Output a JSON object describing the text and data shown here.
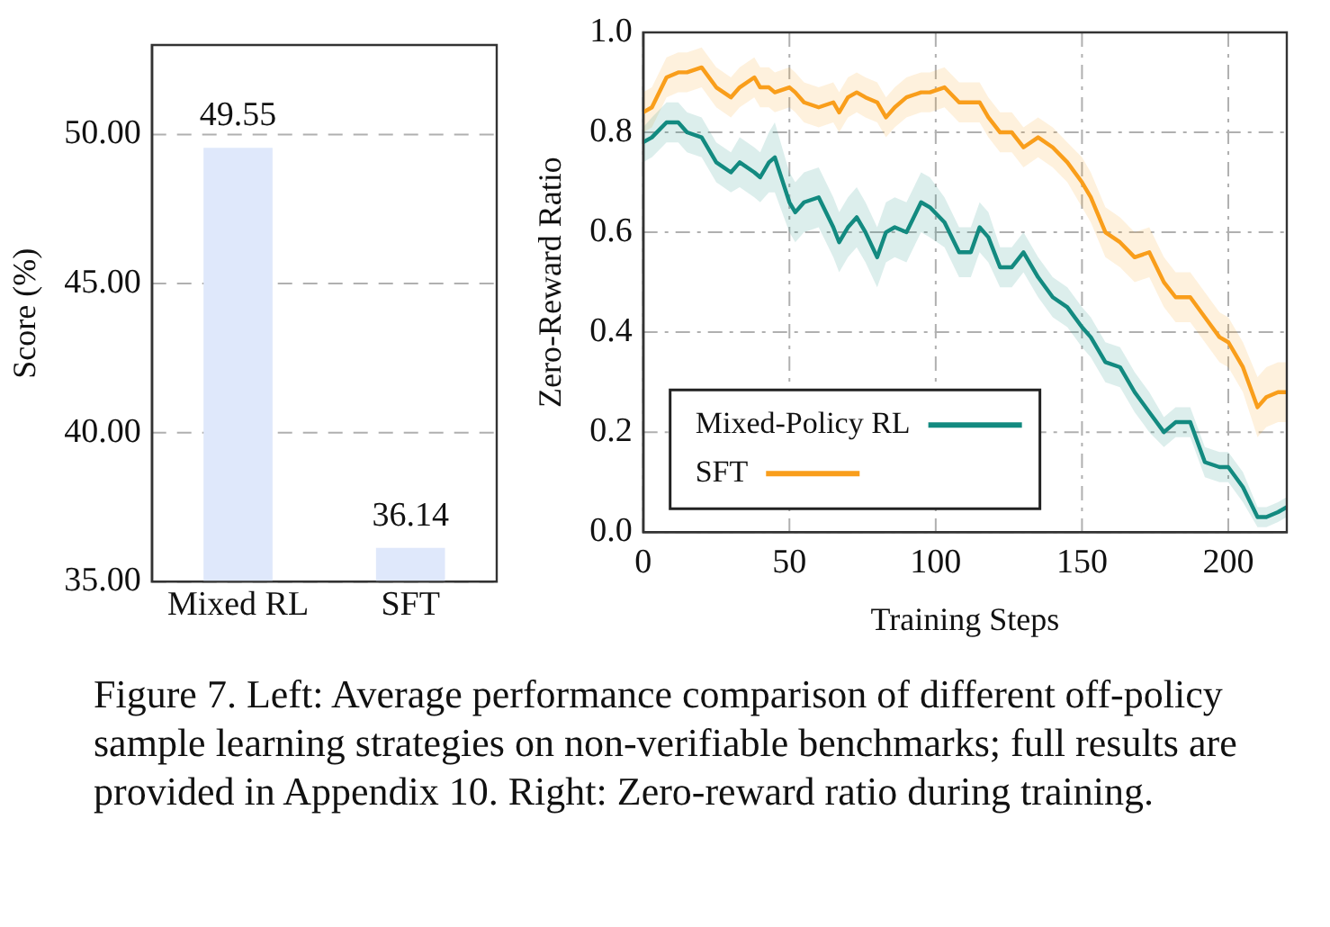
{
  "chart_data": [
    {
      "type": "bar",
      "ylabel": "Score (%)",
      "categories": [
        "Mixed RL",
        "SFT"
      ],
      "values": [
        49.55,
        36.14
      ],
      "color": "#dfe8fb",
      "data_labels": true,
      "ylim": [
        35,
        53
      ],
      "yticks": [
        {
          "value": 35,
          "label": "35.00"
        },
        {
          "value": 40,
          "label": "40.00"
        },
        {
          "value": 45,
          "label": "45.00"
        },
        {
          "value": 50,
          "label": "50.00"
        }
      ],
      "grid": "y"
    },
    {
      "type": "line",
      "xlabel": "Training Steps",
      "ylabel": "Zero-Reward Ratio",
      "xlim": [
        0,
        220
      ],
      "ylim": [
        0,
        1
      ],
      "xticks": [
        0,
        50,
        100,
        150,
        200
      ],
      "yticks": [
        {
          "value": 0,
          "label": "0.0"
        },
        {
          "value": 0.2,
          "label": "0.2"
        },
        {
          "value": 0.4,
          "label": "0.4"
        },
        {
          "value": 0.6,
          "label": "0.6"
        },
        {
          "value": 0.8,
          "label": "0.8"
        },
        {
          "value": 1,
          "label": "1.0"
        }
      ],
      "grid": true,
      "legend": "bottom left",
      "line_style": "solid",
      "marker": "none",
      "x": [
        0,
        3,
        8,
        12,
        15,
        20,
        25,
        30,
        33,
        38,
        40,
        43,
        45,
        50,
        52,
        55,
        60,
        65,
        67,
        70,
        73,
        76,
        80,
        83,
        86,
        90,
        95,
        98,
        103,
        108,
        112,
        115,
        118,
        122,
        126,
        130,
        135,
        140,
        145,
        150,
        153,
        158,
        163,
        168,
        173,
        178,
        182,
        187,
        192,
        197,
        200,
        205,
        210,
        213,
        217,
        220
      ],
      "series": [
        {
          "name": "Mixed-Policy RL",
          "color": "#138a80",
          "values": [
            0.78,
            0.79,
            0.82,
            0.82,
            0.8,
            0.79,
            0.74,
            0.72,
            0.74,
            0.72,
            0.71,
            0.74,
            0.75,
            0.66,
            0.64,
            0.66,
            0.67,
            0.61,
            0.58,
            0.61,
            0.63,
            0.6,
            0.55,
            0.6,
            0.61,
            0.6,
            0.66,
            0.65,
            0.62,
            0.56,
            0.56,
            0.61,
            0.59,
            0.53,
            0.53,
            0.56,
            0.51,
            0.47,
            0.45,
            0.41,
            0.39,
            0.34,
            0.33,
            0.28,
            0.24,
            0.2,
            0.22,
            0.22,
            0.14,
            0.13,
            0.13,
            0.09,
            0.03,
            0.03,
            0.04,
            0.05
          ],
          "lower": [
            0.74,
            0.75,
            0.78,
            0.78,
            0.76,
            0.75,
            0.7,
            0.68,
            0.69,
            0.67,
            0.66,
            0.68,
            0.68,
            0.6,
            0.58,
            0.6,
            0.61,
            0.55,
            0.52,
            0.55,
            0.57,
            0.54,
            0.49,
            0.54,
            0.55,
            0.54,
            0.6,
            0.59,
            0.57,
            0.51,
            0.51,
            0.56,
            0.54,
            0.49,
            0.49,
            0.52,
            0.47,
            0.43,
            0.41,
            0.37,
            0.35,
            0.3,
            0.29,
            0.24,
            0.2,
            0.17,
            0.19,
            0.19,
            0.11,
            0.1,
            0.1,
            0.06,
            0.01,
            0.01,
            0.02,
            0.03
          ],
          "upper": [
            0.81,
            0.83,
            0.86,
            0.86,
            0.84,
            0.83,
            0.78,
            0.76,
            0.79,
            0.77,
            0.76,
            0.8,
            0.82,
            0.72,
            0.7,
            0.72,
            0.73,
            0.67,
            0.64,
            0.67,
            0.69,
            0.66,
            0.61,
            0.66,
            0.67,
            0.66,
            0.72,
            0.71,
            0.67,
            0.61,
            0.61,
            0.66,
            0.64,
            0.57,
            0.57,
            0.6,
            0.55,
            0.51,
            0.49,
            0.45,
            0.43,
            0.38,
            0.37,
            0.32,
            0.28,
            0.23,
            0.25,
            0.25,
            0.17,
            0.16,
            0.16,
            0.12,
            0.05,
            0.05,
            0.06,
            0.07
          ]
        },
        {
          "name": "SFT",
          "color": "#f99e1c",
          "values": [
            0.84,
            0.85,
            0.91,
            0.92,
            0.92,
            0.93,
            0.89,
            0.87,
            0.89,
            0.91,
            0.89,
            0.89,
            0.88,
            0.89,
            0.88,
            0.86,
            0.85,
            0.86,
            0.84,
            0.87,
            0.88,
            0.87,
            0.86,
            0.83,
            0.85,
            0.87,
            0.88,
            0.88,
            0.89,
            0.86,
            0.86,
            0.86,
            0.83,
            0.8,
            0.8,
            0.77,
            0.79,
            0.77,
            0.74,
            0.7,
            0.67,
            0.6,
            0.58,
            0.55,
            0.56,
            0.5,
            0.47,
            0.47,
            0.43,
            0.39,
            0.38,
            0.33,
            0.25,
            0.27,
            0.28,
            0.28
          ],
          "lower": [
            0.8,
            0.81,
            0.87,
            0.88,
            0.88,
            0.89,
            0.85,
            0.83,
            0.85,
            0.87,
            0.85,
            0.85,
            0.84,
            0.85,
            0.84,
            0.82,
            0.81,
            0.82,
            0.8,
            0.83,
            0.84,
            0.83,
            0.82,
            0.79,
            0.81,
            0.83,
            0.84,
            0.84,
            0.85,
            0.82,
            0.82,
            0.82,
            0.79,
            0.76,
            0.76,
            0.73,
            0.75,
            0.73,
            0.7,
            0.65,
            0.62,
            0.55,
            0.53,
            0.5,
            0.51,
            0.45,
            0.42,
            0.42,
            0.38,
            0.34,
            0.33,
            0.28,
            0.19,
            0.21,
            0.22,
            0.22
          ],
          "upper": [
            0.88,
            0.89,
            0.95,
            0.96,
            0.96,
            0.97,
            0.93,
            0.91,
            0.93,
            0.95,
            0.93,
            0.93,
            0.92,
            0.93,
            0.92,
            0.9,
            0.89,
            0.9,
            0.88,
            0.91,
            0.92,
            0.91,
            0.9,
            0.87,
            0.89,
            0.91,
            0.92,
            0.92,
            0.93,
            0.9,
            0.9,
            0.9,
            0.87,
            0.84,
            0.84,
            0.81,
            0.83,
            0.81,
            0.78,
            0.75,
            0.72,
            0.65,
            0.63,
            0.6,
            0.61,
            0.55,
            0.52,
            0.52,
            0.48,
            0.44,
            0.43,
            0.38,
            0.31,
            0.33,
            0.34,
            0.34
          ]
        }
      ],
      "annotations": [
        "Figure 7. Left: Average performance comparison of different off-policy sample learning strategies on non-verifiable benchmarks; full results are provided in Appendix 10. Right: Zero-reward ratio during training."
      ]
    }
  ]
}
